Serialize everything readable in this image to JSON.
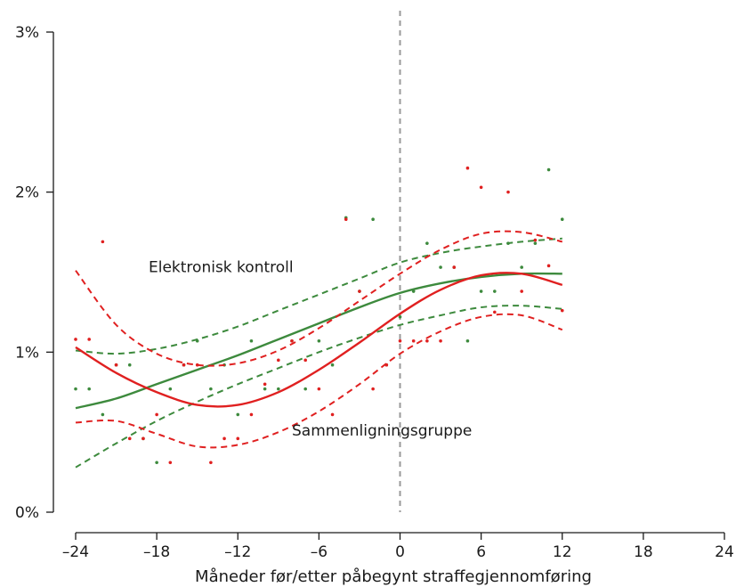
{
  "chart_data": {
    "type": "scatter",
    "title": "",
    "xlabel": "Måneder før/etter påbegynt straffegjennomføring",
    "ylabel": "",
    "xlim": [
      -24,
      24
    ],
    "ylim": [
      0,
      3
    ],
    "x_ticks": [
      -24,
      -18,
      -12,
      -6,
      0,
      6,
      12,
      18,
      24
    ],
    "x_tick_labels": [
      "–24",
      "–18",
      "–12",
      "–6",
      "0",
      "6",
      "12",
      "18",
      "24"
    ],
    "y_ticks": [
      0,
      1,
      2,
      3
    ],
    "y_tick_labels": [
      "0%",
      "1%",
      "2%",
      "3%"
    ],
    "grid": false,
    "reference_line_x": 0,
    "colors": {
      "electronic": "#3d8a3d",
      "comparison": "#e02020",
      "reference": "#9a9a9a"
    },
    "annotations": [
      {
        "text": "Elektronisk kontroll",
        "x": -18.6,
        "y": 1.5
      },
      {
        "text": "Sammenligningsgruppe",
        "x": -8.0,
        "y": 0.48
      }
    ],
    "series": [
      {
        "key": "electronic",
        "points": [
          [
            -24,
            0.77
          ],
          [
            -23,
            0.77
          ],
          [
            -22,
            0.61
          ],
          [
            -21,
            0.92
          ],
          [
            -20,
            0.92
          ],
          [
            -19,
            0.46
          ],
          [
            -18,
            0.31
          ],
          [
            -17,
            0.77
          ],
          [
            -16,
            0.92
          ],
          [
            -15,
            1.07
          ],
          [
            -14,
            0.77
          ],
          [
            -13,
            0.92
          ],
          [
            -12,
            0.61
          ],
          [
            -11,
            1.07
          ],
          [
            -10,
            0.77
          ],
          [
            -9,
            0.77
          ],
          [
            -8,
            1.07
          ],
          [
            -7,
            0.77
          ],
          [
            -6,
            1.07
          ],
          [
            -5,
            0.92
          ],
          [
            -4,
            1.84
          ],
          [
            -3,
            1.38
          ],
          [
            -2,
            1.83
          ],
          [
            -1,
            0.92
          ],
          [
            0,
            1.22
          ],
          [
            1,
            1.38
          ],
          [
            2,
            1.68
          ],
          [
            3,
            1.53
          ],
          [
            4,
            1.53
          ],
          [
            5,
            1.07
          ],
          [
            6,
            1.38
          ],
          [
            7,
            1.38
          ],
          [
            8,
            1.68
          ],
          [
            9,
            1.53
          ],
          [
            10,
            1.68
          ],
          [
            11,
            2.14
          ],
          [
            12,
            1.83
          ]
        ],
        "fit": [
          [
            -24,
            0.65
          ],
          [
            -21,
            0.71
          ],
          [
            -18,
            0.8
          ],
          [
            -15,
            0.89
          ],
          [
            -12,
            0.98
          ],
          [
            -9,
            1.08
          ],
          [
            -6,
            1.18
          ],
          [
            -3,
            1.28
          ],
          [
            0,
            1.37
          ],
          [
            3,
            1.43
          ],
          [
            6,
            1.47
          ],
          [
            9,
            1.49
          ],
          [
            12,
            1.49
          ]
        ],
        "ci_upper": [
          [
            -24,
            1.01
          ],
          [
            -21,
            0.99
          ],
          [
            -18,
            1.02
          ],
          [
            -15,
            1.08
          ],
          [
            -12,
            1.16
          ],
          [
            -9,
            1.26
          ],
          [
            -6,
            1.36
          ],
          [
            -3,
            1.46
          ],
          [
            0,
            1.56
          ],
          [
            3,
            1.62
          ],
          [
            6,
            1.66
          ],
          [
            9,
            1.69
          ],
          [
            12,
            1.71
          ]
        ],
        "ci_lower": [
          [
            -24,
            0.28
          ],
          [
            -21,
            0.43
          ],
          [
            -18,
            0.57
          ],
          [
            -15,
            0.69
          ],
          [
            -12,
            0.8
          ],
          [
            -9,
            0.9
          ],
          [
            -6,
            1.0
          ],
          [
            -3,
            1.09
          ],
          [
            0,
            1.17
          ],
          [
            3,
            1.23
          ],
          [
            6,
            1.28
          ],
          [
            9,
            1.29
          ],
          [
            12,
            1.27
          ]
        ]
      },
      {
        "key": "comparison",
        "points": [
          [
            -24,
            1.08
          ],
          [
            -23,
            1.08
          ],
          [
            -22,
            1.69
          ],
          [
            -21,
            0.92
          ],
          [
            -20,
            0.46
          ],
          [
            -19,
            0.46
          ],
          [
            -18,
            0.61
          ],
          [
            -17,
            0.31
          ],
          [
            -16,
            0.92
          ],
          [
            -15,
            0.92
          ],
          [
            -14,
            0.31
          ],
          [
            -13,
            0.46
          ],
          [
            -12,
            0.46
          ],
          [
            -11,
            0.61
          ],
          [
            -10,
            0.8
          ],
          [
            -9,
            0.95
          ],
          [
            -8,
            1.07
          ],
          [
            -7,
            0.95
          ],
          [
            -6,
            0.77
          ],
          [
            -5,
            0.61
          ],
          [
            -4,
            1.83
          ],
          [
            -3,
            1.38
          ],
          [
            -2,
            0.77
          ],
          [
            -1,
            0.92
          ],
          [
            0,
            1.07
          ],
          [
            1,
            1.07
          ],
          [
            2,
            1.07
          ],
          [
            3,
            1.07
          ],
          [
            4,
            1.53
          ],
          [
            5,
            2.15
          ],
          [
            6,
            2.03
          ],
          [
            7,
            1.25
          ],
          [
            8,
            2.0
          ],
          [
            9,
            1.38
          ],
          [
            10,
            1.7
          ],
          [
            11,
            1.54
          ],
          [
            12,
            1.26
          ]
        ],
        "fit": [
          [
            -24,
            1.03
          ],
          [
            -21,
            0.87
          ],
          [
            -18,
            0.75
          ],
          [
            -15,
            0.67
          ],
          [
            -12,
            0.67
          ],
          [
            -9,
            0.75
          ],
          [
            -6,
            0.89
          ],
          [
            -3,
            1.06
          ],
          [
            0,
            1.24
          ],
          [
            3,
            1.39
          ],
          [
            6,
            1.48
          ],
          [
            9,
            1.49
          ],
          [
            12,
            1.42
          ]
        ],
        "ci_upper": [
          [
            -24,
            1.51
          ],
          [
            -21,
            1.17
          ],
          [
            -18,
            0.99
          ],
          [
            -15,
            0.92
          ],
          [
            -12,
            0.93
          ],
          [
            -9,
            1.01
          ],
          [
            -6,
            1.15
          ],
          [
            -3,
            1.32
          ],
          [
            0,
            1.49
          ],
          [
            3,
            1.64
          ],
          [
            6,
            1.74
          ],
          [
            9,
            1.75
          ],
          [
            12,
            1.69
          ]
        ],
        "ci_lower": [
          [
            -24,
            0.56
          ],
          [
            -21,
            0.57
          ],
          [
            -18,
            0.49
          ],
          [
            -15,
            0.41
          ],
          [
            -12,
            0.42
          ],
          [
            -9,
            0.5
          ],
          [
            -6,
            0.63
          ],
          [
            -3,
            0.8
          ],
          [
            0,
            0.99
          ],
          [
            3,
            1.13
          ],
          [
            6,
            1.22
          ],
          [
            9,
            1.23
          ],
          [
            12,
            1.14
          ]
        ]
      }
    ]
  }
}
